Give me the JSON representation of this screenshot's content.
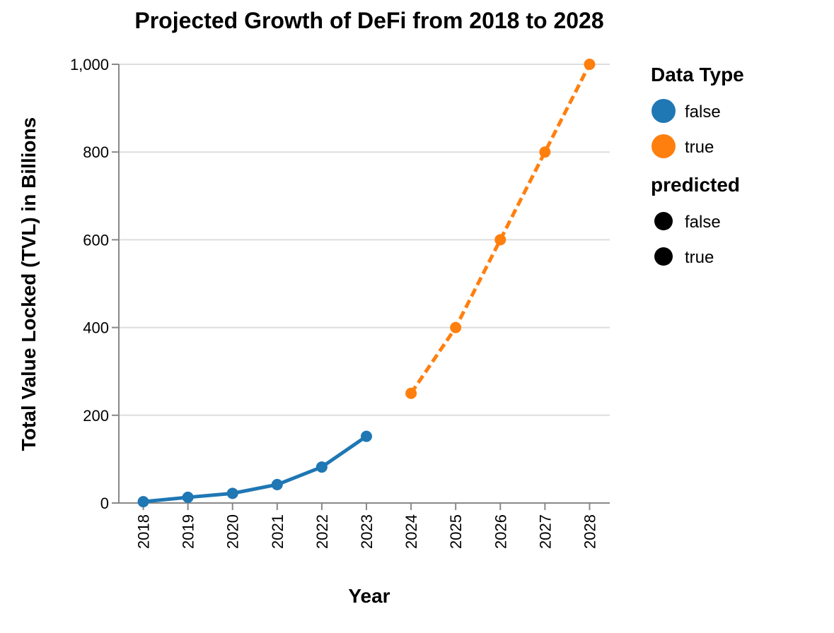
{
  "chart_data": {
    "type": "line",
    "title": "Projected Growth of DeFi from 2018 to 2028",
    "xlabel": "Year",
    "ylabel": "Total Value Locked (TVL) in Billions",
    "categories": [
      "2018",
      "2019",
      "2020",
      "2021",
      "2022",
      "2023",
      "2024",
      "2025",
      "2026",
      "2027",
      "2028"
    ],
    "ylim": [
      0,
      1000
    ],
    "yticks": [
      0,
      200,
      400,
      600,
      800,
      1000
    ],
    "ytick_labels": [
      "0",
      "200",
      "400",
      "600",
      "800",
      "1,000"
    ],
    "grid": true,
    "series": [
      {
        "name": "false",
        "color": "#1f77b4",
        "dashed": false,
        "x": [
          "2018",
          "2019",
          "2020",
          "2021",
          "2022",
          "2023"
        ],
        "values": [
          3,
          13,
          22,
          42,
          82,
          152
        ]
      },
      {
        "name": "true",
        "color": "#ff7f0e",
        "dashed": true,
        "x": [
          "2024",
          "2025",
          "2026",
          "2027",
          "2028"
        ],
        "values": [
          250,
          400,
          600,
          800,
          1000
        ]
      }
    ],
    "legend": {
      "placement": "right",
      "groups": [
        {
          "title": "Data Type",
          "items": [
            {
              "label": "false",
              "color": "#1f77b4"
            },
            {
              "label": "true",
              "color": "#ff7f0e"
            }
          ]
        },
        {
          "title": "predicted",
          "items": [
            {
              "label": "false",
              "color": "#000000"
            },
            {
              "label": "true",
              "color": "#000000"
            }
          ]
        }
      ]
    }
  }
}
